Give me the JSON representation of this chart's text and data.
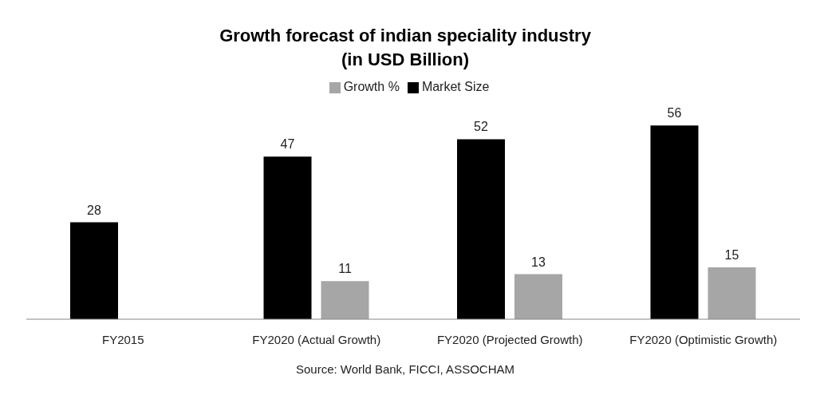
{
  "chart_data": {
    "type": "bar",
    "title": "Growth forecast of indian speciality industry",
    "subtitle": "(in USD Billion)",
    "categories": [
      "FY2015",
      "FY2020 (Actual Growth)",
      "FY2020 (Projected Growth)",
      "FY2020 (Optimistic Growth)"
    ],
    "series": [
      {
        "name": "Market Size",
        "color": "#000000",
        "values": [
          28,
          47,
          52,
          56
        ]
      },
      {
        "name": "Growth %",
        "color": "#a6a6a6",
        "values": [
          null,
          11,
          13,
          15
        ]
      }
    ],
    "data_labels": true,
    "legend": "top",
    "grid": false,
    "annotations": [
      "Source: World Bank, FICCI, ASSOCHAM"
    ]
  }
}
